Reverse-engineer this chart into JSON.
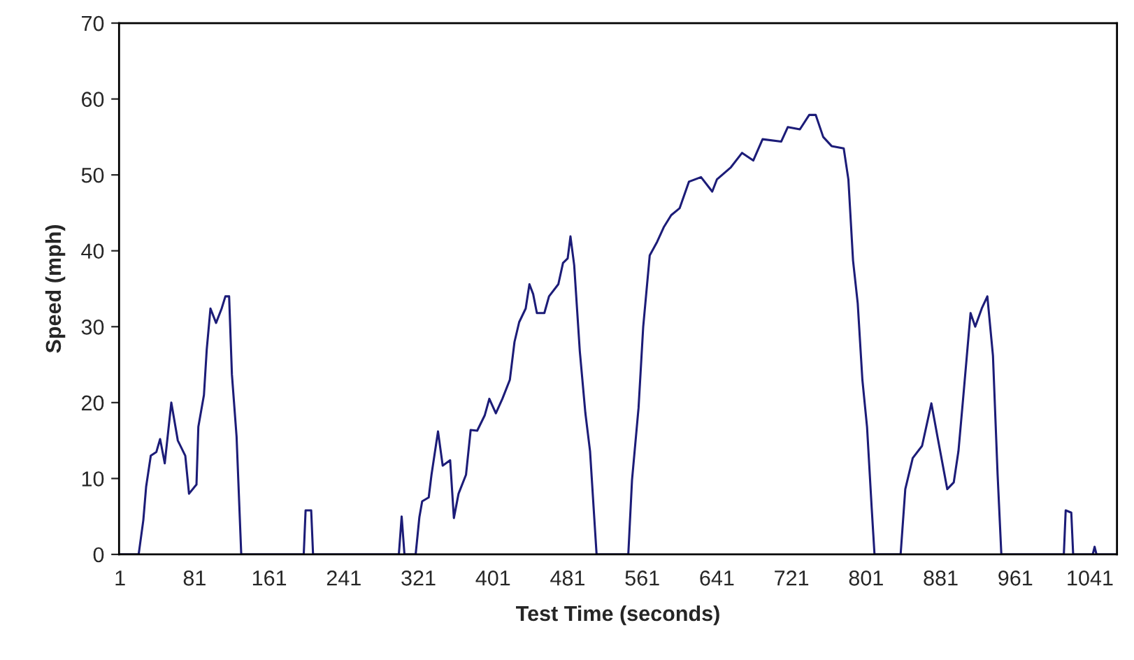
{
  "chart_data": {
    "type": "line",
    "xlabel": "Test Time (seconds)",
    "ylabel": "Speed (mph)",
    "xlim": [
      0,
      1070
    ],
    "xticks": [
      1,
      81,
      161,
      241,
      321,
      401,
      481,
      561,
      641,
      721,
      801,
      881,
      961,
      1041
    ],
    "ylim": [
      0,
      70
    ],
    "yticks": [
      0,
      10,
      20,
      30,
      40,
      50,
      60,
      70
    ],
    "grid": false,
    "line_style": "solid",
    "series": [
      {
        "color": "#1c1c78",
        "x": [
          1,
          21,
          26,
          29,
          34,
          40,
          44,
          49,
          56,
          63,
          71,
          75,
          83,
          85,
          91,
          94,
          98,
          104,
          110,
          114,
          118,
          121,
          126,
          131,
          198,
          200,
          206,
          208,
          300,
          303,
          306,
          318,
          322,
          325,
          332,
          335,
          342,
          347,
          355,
          359,
          364,
          372,
          377,
          384,
          392,
          397,
          404,
          411,
          419,
          424,
          429,
          436,
          440,
          444,
          448,
          456,
          461,
          471,
          476,
          481,
          484,
          488,
          494,
          500,
          505,
          512,
          546,
          550,
          557,
          562,
          569,
          577,
          584,
          592,
          601,
          611,
          624,
          636,
          641,
          656,
          668,
          680,
          690,
          710,
          717,
          730,
          740,
          747,
          755,
          764,
          777,
          782,
          787,
          792,
          797,
          802,
          807,
          810,
          838,
          843,
          851,
          861,
          871,
          878,
          888,
          895,
          900,
          905,
          913,
          918,
          925,
          931,
          937,
          942,
          946,
          1013,
          1015,
          1021,
          1023,
          1044,
          1046,
          1048,
          1069
        ],
        "values": [
          0,
          0,
          4.5,
          8.9,
          13,
          13.5,
          15.2,
          12,
          20,
          15,
          13,
          8,
          9.2,
          16.8,
          21,
          27,
          32.4,
          30.5,
          32.4,
          34,
          34,
          23.7,
          15.5,
          0,
          0,
          5.8,
          5.8,
          0,
          0,
          5,
          0,
          0,
          4.9,
          7,
          7.5,
          10.5,
          16.2,
          11.7,
          12.4,
          4.8,
          8,
          10.5,
          16.4,
          16.3,
          18.3,
          20.5,
          18.6,
          20.5,
          23,
          28,
          30.6,
          32.4,
          35.6,
          34.3,
          31.8,
          31.8,
          34,
          35.6,
          38.4,
          39,
          41.9,
          38.1,
          26.8,
          18.6,
          13.6,
          0,
          0,
          9.8,
          19.3,
          30,
          39.4,
          41.2,
          43.1,
          44.7,
          45.6,
          49.1,
          49.7,
          47.8,
          49.4,
          51,
          52.9,
          51.9,
          54.7,
          54.4,
          56.3,
          56,
          57.9,
          57.9,
          55,
          53.8,
          53.5,
          49.4,
          38.7,
          33.1,
          23,
          16.8,
          6.1,
          0,
          0,
          8.6,
          12.7,
          14.3,
          19.9,
          15.2,
          8.6,
          9.5,
          13.6,
          20.5,
          31.8,
          30,
          32.4,
          34,
          26.2,
          10.5,
          0,
          0,
          5.8,
          5.5,
          0,
          0,
          1,
          0,
          0
        ]
      }
    ]
  }
}
